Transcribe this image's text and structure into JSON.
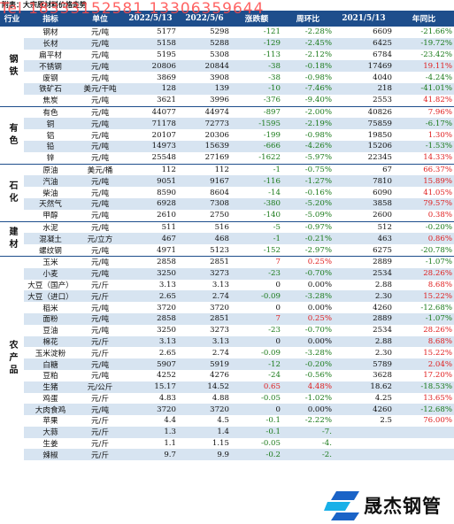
{
  "title": "附表：大宗原材料价格走势",
  "watermark": "Tel 18333152581 13306359644",
  "headers": [
    "行业",
    "指标",
    "单位",
    "2022/5/13",
    "2022/5/6",
    "涨跌额",
    "周环比",
    "2021/5/13",
    "年同比"
  ],
  "groups": [
    {
      "name": "钢铁",
      "rows": [
        [
          "钢材",
          "元/吨",
          "5177",
          "5298",
          "-121",
          "-2.28%",
          "6609",
          "-21.66%"
        ],
        [
          "长材",
          "元/吨",
          "5158",
          "5288",
          "-129",
          "-2.45%",
          "6425",
          "-19.72%"
        ],
        [
          "扁平材",
          "元/吨",
          "5195",
          "5308",
          "-113",
          "-2.12%",
          "6784",
          "-23.42%"
        ],
        [
          "不锈钢",
          "元/吨",
          "20806",
          "20844",
          "-38",
          "-0.18%",
          "17469",
          "19.11%"
        ],
        [
          "废钢",
          "元/吨",
          "3869",
          "3908",
          "-38",
          "-0.98%",
          "4040",
          "-4.24%"
        ],
        [
          "铁矿石",
          "美元/干吨",
          "128",
          "139",
          "-10",
          "-7.46%",
          "218",
          "-41.01%"
        ],
        [
          "焦炭",
          "元/吨",
          "3621",
          "3996",
          "-376",
          "-9.40%",
          "2553",
          "41.82%"
        ]
      ]
    },
    {
      "name": "有色",
      "rows": [
        [
          "有色",
          "元/吨",
          "44077",
          "44974",
          "-897",
          "-2.00%",
          "40826",
          "7.96%"
        ],
        [
          "铜",
          "元/吨",
          "71178",
          "72773",
          "-1595",
          "-2.19%",
          "75859",
          "-6.17%"
        ],
        [
          "铝",
          "元/吨",
          "20107",
          "20306",
          "-199",
          "-0.98%",
          "19850",
          "1.30%"
        ],
        [
          "铅",
          "元/吨",
          "14973",
          "15639",
          "-666",
          "-4.26%",
          "15206",
          "-1.53%"
        ],
        [
          "锌",
          "元/吨",
          "25548",
          "27169",
          "-1622",
          "-5.97%",
          "22345",
          "14.33%"
        ]
      ]
    },
    {
      "name": "石化",
      "rows": [
        [
          "原油",
          "美元/桶",
          "112",
          "112",
          "-1",
          "-0.75%",
          "67",
          "66.37%"
        ],
        [
          "汽油",
          "元/吨",
          "9051",
          "9167",
          "-116",
          "-1.27%",
          "7810",
          "15.89%"
        ],
        [
          "柴油",
          "元/吨",
          "8590",
          "8604",
          "-14",
          "-0.16%",
          "6090",
          "41.05%"
        ],
        [
          "天然气",
          "元/吨",
          "6928",
          "7308",
          "-380",
          "-5.20%",
          "3858",
          "79.57%"
        ],
        [
          "甲醇",
          "元/吨",
          "2610",
          "2750",
          "-140",
          "-5.09%",
          "2600",
          "0.38%"
        ]
      ]
    },
    {
      "name": "建材",
      "rows": [
        [
          "水泥",
          "元/吨",
          "511",
          "516",
          "-5",
          "-0.97%",
          "512",
          "-0.20%"
        ],
        [
          "混凝土",
          "元/立方",
          "467",
          "468",
          "-1",
          "-0.21%",
          "463",
          "0.86%"
        ],
        [
          "螺纹钢",
          "元/吨",
          "4971",
          "5123",
          "-152",
          "-2.97%",
          "6275",
          "-20.78%"
        ]
      ]
    },
    {
      "name": "农产品",
      "rows": [
        [
          "玉米",
          "元/吨",
          "2858",
          "2851",
          "7",
          "0.25%",
          "2889",
          "-1.07%"
        ],
        [
          "小麦",
          "元/吨",
          "3250",
          "3273",
          "-23",
          "-0.70%",
          "2534",
          "28.26%"
        ],
        [
          "大豆（国产）",
          "元/斤",
          "3.13",
          "3.13",
          "0",
          "0.00%",
          "2.88",
          "8.68%"
        ],
        [
          "大豆（进口）",
          "元/斤",
          "2.65",
          "2.74",
          "-0.09",
          "-3.28%",
          "2.30",
          "15.22%"
        ],
        [
          "稻米",
          "元/吨",
          "3720",
          "3720",
          "0",
          "0.00%",
          "4260",
          "-12.68%"
        ],
        [
          "面粉",
          "元/吨",
          "2858",
          "2851",
          "7",
          "0.25%",
          "2889",
          "-1.07%"
        ],
        [
          "豆油",
          "元/吨",
          "3250",
          "3273",
          "-23",
          "-0.70%",
          "2534",
          "28.26%"
        ],
        [
          "棉花",
          "元/斤",
          "3.13",
          "3.13",
          "0",
          "0.00%",
          "2.88",
          "8.68%"
        ],
        [
          "玉米淀粉",
          "元/斤",
          "2.65",
          "2.74",
          "-0.09",
          "-3.28%",
          "2.30",
          "15.22%"
        ],
        [
          "白糖",
          "元/吨",
          "5907",
          "5919",
          "-12",
          "-0.20%",
          "5789",
          "2.04%"
        ],
        [
          "豆粕",
          "元/吨",
          "4252",
          "4276",
          "-24",
          "-0.56%",
          "3628",
          "17.20%"
        ],
        [
          "生猪",
          "元/公斤",
          "15.17",
          "14.52",
          "0.65",
          "4.48%",
          "18.62",
          "-18.53%"
        ],
        [
          "鸡蛋",
          "元/斤",
          "4.83",
          "4.88",
          "-0.05",
          "-1.02%",
          "4.25",
          "13.65%"
        ],
        [
          "大肉食鸡",
          "元/吨",
          "3720",
          "3720",
          "0",
          "0.00%",
          "4260",
          "-12.68%"
        ],
        [
          "苹果",
          "元/斤",
          "4.4",
          "4.5",
          "-0.1",
          "-2.22%",
          "2.5",
          "76.00%"
        ],
        [
          "大蒜",
          "元/斤",
          "1.3",
          "1.4",
          "-0.1",
          "-7.",
          "",
          ""
        ],
        [
          "生姜",
          "元/斤",
          "1.1",
          "1.15",
          "-0.05",
          "-4.",
          "",
          ""
        ],
        [
          "辣椒",
          "元/斤",
          "9.7",
          "9.9",
          "-0.2",
          "-2.",
          "",
          ""
        ]
      ]
    }
  ],
  "logo": {
    "text": "晟杰钢管",
    "mark_color": "#1a63c7",
    "mark_accent": "#18b0e8"
  },
  "colors": {
    "header_bg": "#1e4e8c",
    "neg": "#1a7a1a",
    "pos": "#e02020",
    "stripe": "#d7e4f1"
  }
}
